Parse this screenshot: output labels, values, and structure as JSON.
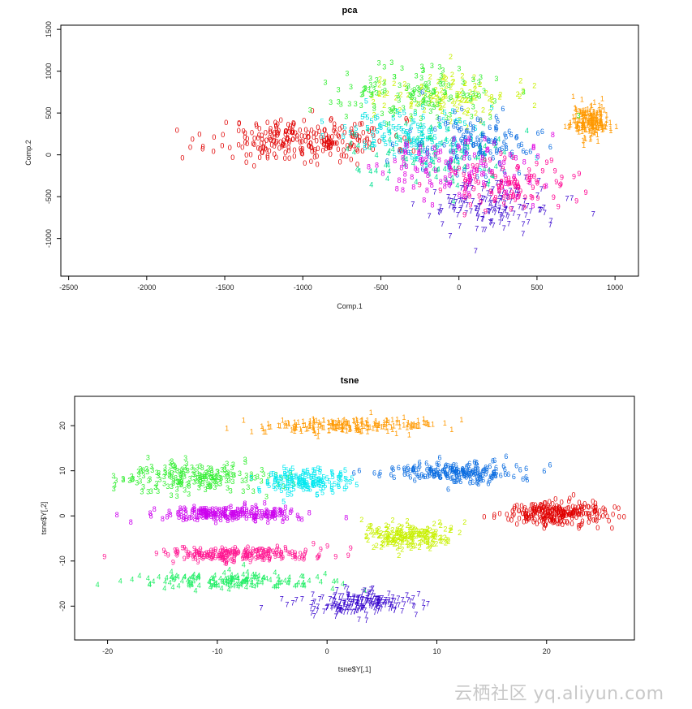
{
  "chart_data": [
    {
      "type": "scatter",
      "title": "pca",
      "xlabel": "Comp.1",
      "ylabel": "Comp.2",
      "xlim": [
        -2550,
        1150
      ],
      "ylim": [
        -1450,
        1550
      ],
      "xticks": [
        -2500,
        -2000,
        -1500,
        -1000,
        -500,
        0,
        500,
        1000
      ],
      "yticks": [
        -1000,
        -500,
        0,
        500,
        1000,
        1500
      ],
      "grid": false,
      "marker": "digit labels 0-9",
      "clusters": [
        {
          "label": "0",
          "color": "#e00000",
          "center": [
            -1000,
            150
          ],
          "spread": [
            520,
            230
          ],
          "n": 260
        },
        {
          "label": "1",
          "color": "#ff9900",
          "center": [
            840,
            380
          ],
          "spread": [
            110,
            180
          ],
          "n": 180
        },
        {
          "label": "2",
          "color": "#c8f000",
          "center": [
            -100,
            700
          ],
          "spread": [
            380,
            260
          ],
          "n": 110
        },
        {
          "label": "3",
          "color": "#33ee33",
          "center": [
            -300,
            700
          ],
          "spread": [
            420,
            300
          ],
          "n": 130
        },
        {
          "label": "4",
          "color": "#00e090",
          "center": [
            -200,
            0
          ],
          "spread": [
            450,
            350
          ],
          "n": 110
        },
        {
          "label": "5",
          "color": "#00e0e0",
          "center": [
            -250,
            200
          ],
          "spread": [
            450,
            300
          ],
          "n": 120
        },
        {
          "label": "6",
          "color": "#0a6ce0",
          "center": [
            100,
            100
          ],
          "spread": [
            380,
            300
          ],
          "n": 120
        },
        {
          "label": "7",
          "color": "#3300cc",
          "center": [
            200,
            -650
          ],
          "spread": [
            400,
            300
          ],
          "n": 140
        },
        {
          "label": "8",
          "color": "#e000e0",
          "center": [
            0,
            -200
          ],
          "spread": [
            400,
            350
          ],
          "n": 110
        },
        {
          "label": "9",
          "color": "#ff0090",
          "center": [
            300,
            -400
          ],
          "spread": [
            350,
            300
          ],
          "n": 110
        }
      ]
    },
    {
      "type": "scatter",
      "title": "tsne",
      "xlabel": "tsne$Y[,1]",
      "ylabel": "tsne$Y[,2]",
      "xlim": [
        -23,
        28
      ],
      "ylim": [
        -27.5,
        26.5
      ],
      "xticks": [
        -20,
        -10,
        0,
        10,
        20
      ],
      "yticks": [
        -20,
        -10,
        0,
        10,
        20
      ],
      "grid": false,
      "marker": "digit labels 0-9",
      "clusters": [
        {
          "label": "0",
          "color": "#e00000",
          "center": [
            20.5,
            0
          ],
          "spread": [
            4.2,
            2.3
          ],
          "n": 260
        },
        {
          "label": "1",
          "color": "#ff9900",
          "center": [
            2,
            19.5
          ],
          "spread": [
            7.5,
            1.5
          ],
          "n": 190
        },
        {
          "label": "2",
          "color": "#c8f000",
          "center": [
            7.5,
            -5
          ],
          "spread": [
            3.8,
            2.6
          ],
          "n": 190
        },
        {
          "label": "3",
          "color": "#33ee33",
          "center": [
            -12,
            8
          ],
          "spread": [
            6,
            2.8
          ],
          "n": 200
        },
        {
          "label": "4",
          "color": "#22ee66",
          "center": [
            -9,
            -15
          ],
          "spread": [
            8,
            1.6
          ],
          "n": 160
        },
        {
          "label": "5",
          "color": "#00e8f0",
          "center": [
            -2,
            7
          ],
          "spread": [
            3.6,
            2.4
          ],
          "n": 150
        },
        {
          "label": "6",
          "color": "#0a6ce0",
          "center": [
            12,
            9
          ],
          "spread": [
            6,
            2.1
          ],
          "n": 200
        },
        {
          "label": "7",
          "color": "#3300cc",
          "center": [
            3,
            -20
          ],
          "spread": [
            5,
            2.6
          ],
          "n": 190
        },
        {
          "label": "8",
          "color": "#cc00ee",
          "center": [
            -9,
            0
          ],
          "spread": [
            6,
            1.5
          ],
          "n": 200
        },
        {
          "label": "9",
          "color": "#ff1490",
          "center": [
            -8,
            -9
          ],
          "spread": [
            7,
            1.5
          ],
          "n": 200
        }
      ]
    }
  ],
  "watermark": "云栖社区 yq.aliyun.com"
}
